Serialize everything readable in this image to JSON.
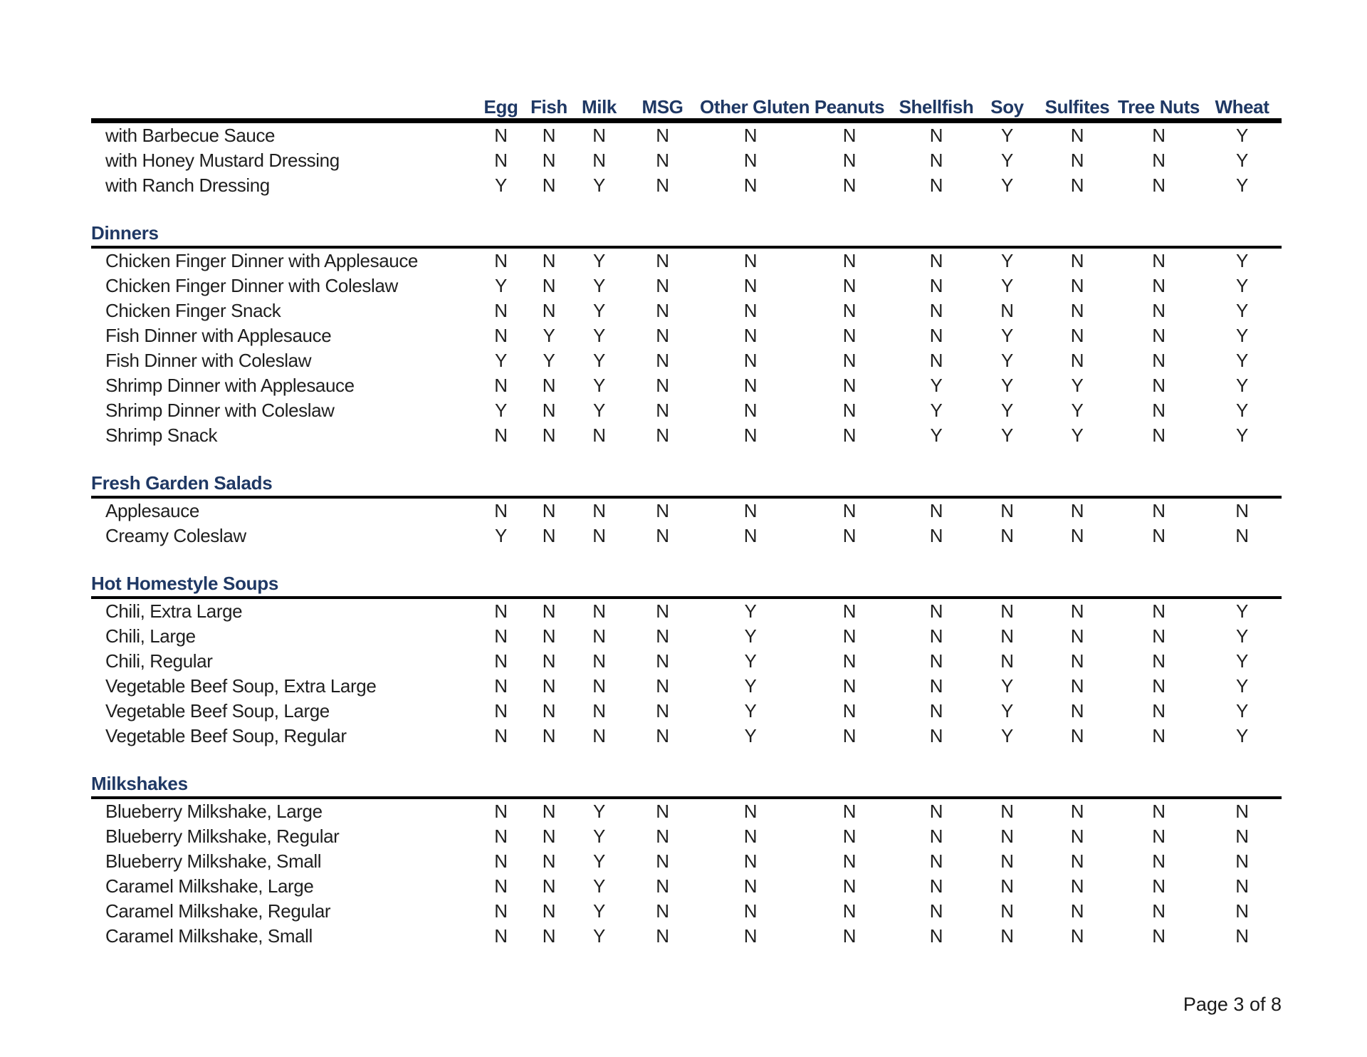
{
  "page": {
    "footer": "Page 3 of 8"
  },
  "colors": {
    "heading": "#1F3864",
    "body_text": "#1f1f1f",
    "rule": "#000000",
    "background": "#ffffff"
  },
  "table": {
    "columns": [
      "Egg",
      "Fish",
      "Milk",
      "MSG",
      "Other Gluten",
      "Peanuts",
      "Shellfish",
      "Soy",
      "Sulfites",
      "Tree Nuts",
      "Wheat"
    ],
    "sections": [
      {
        "title": "",
        "rows": [
          {
            "label": "with Barbecue Sauce",
            "values": [
              "N",
              "N",
              "N",
              "N",
              "N",
              "N",
              "N",
              "Y",
              "N",
              "N",
              "Y"
            ]
          },
          {
            "label": "with Honey Mustard Dressing",
            "values": [
              "N",
              "N",
              "N",
              "N",
              "N",
              "N",
              "N",
              "Y",
              "N",
              "N",
              "Y"
            ]
          },
          {
            "label": "with Ranch Dressing",
            "values": [
              "Y",
              "N",
              "Y",
              "N",
              "N",
              "N",
              "N",
              "Y",
              "N",
              "N",
              "Y"
            ]
          }
        ]
      },
      {
        "title": "Dinners",
        "rows": [
          {
            "label": "Chicken Finger Dinner with Applesauce",
            "values": [
              "N",
              "N",
              "Y",
              "N",
              "N",
              "N",
              "N",
              "Y",
              "N",
              "N",
              "Y"
            ]
          },
          {
            "label": "Chicken Finger Dinner with Coleslaw",
            "values": [
              "Y",
              "N",
              "Y",
              "N",
              "N",
              "N",
              "N",
              "Y",
              "N",
              "N",
              "Y"
            ]
          },
          {
            "label": "Chicken Finger Snack",
            "values": [
              "N",
              "N",
              "Y",
              "N",
              "N",
              "N",
              "N",
              "N",
              "N",
              "N",
              "Y"
            ]
          },
          {
            "label": "Fish Dinner with Applesauce",
            "values": [
              "N",
              "Y",
              "Y",
              "N",
              "N",
              "N",
              "N",
              "Y",
              "N",
              "N",
              "Y"
            ]
          },
          {
            "label": "Fish Dinner with Coleslaw",
            "values": [
              "Y",
              "Y",
              "Y",
              "N",
              "N",
              "N",
              "N",
              "Y",
              "N",
              "N",
              "Y"
            ]
          },
          {
            "label": "Shrimp Dinner with Applesauce",
            "values": [
              "N",
              "N",
              "Y",
              "N",
              "N",
              "N",
              "Y",
              "Y",
              "Y",
              "N",
              "Y"
            ]
          },
          {
            "label": "Shrimp Dinner with Coleslaw",
            "values": [
              "Y",
              "N",
              "Y",
              "N",
              "N",
              "N",
              "Y",
              "Y",
              "Y",
              "N",
              "Y"
            ]
          },
          {
            "label": "Shrimp Snack",
            "values": [
              "N",
              "N",
              "N",
              "N",
              "N",
              "N",
              "Y",
              "Y",
              "Y",
              "N",
              "Y"
            ]
          }
        ]
      },
      {
        "title": "Fresh Garden Salads",
        "rows": [
          {
            "label": "Applesauce",
            "values": [
              "N",
              "N",
              "N",
              "N",
              "N",
              "N",
              "N",
              "N",
              "N",
              "N",
              "N"
            ]
          },
          {
            "label": "Creamy Coleslaw",
            "values": [
              "Y",
              "N",
              "N",
              "N",
              "N",
              "N",
              "N",
              "N",
              "N",
              "N",
              "N"
            ]
          }
        ]
      },
      {
        "title": "Hot Homestyle Soups",
        "rows": [
          {
            "label": "Chili, Extra Large",
            "values": [
              "N",
              "N",
              "N",
              "N",
              "Y",
              "N",
              "N",
              "N",
              "N",
              "N",
              "Y"
            ]
          },
          {
            "label": "Chili, Large",
            "values": [
              "N",
              "N",
              "N",
              "N",
              "Y",
              "N",
              "N",
              "N",
              "N",
              "N",
              "Y"
            ]
          },
          {
            "label": "Chili, Regular",
            "values": [
              "N",
              "N",
              "N",
              "N",
              "Y",
              "N",
              "N",
              "N",
              "N",
              "N",
              "Y"
            ]
          },
          {
            "label": "Vegetable Beef Soup, Extra Large",
            "values": [
              "N",
              "N",
              "N",
              "N",
              "Y",
              "N",
              "N",
              "Y",
              "N",
              "N",
              "Y"
            ]
          },
          {
            "label": "Vegetable Beef Soup, Large",
            "values": [
              "N",
              "N",
              "N",
              "N",
              "Y",
              "N",
              "N",
              "Y",
              "N",
              "N",
              "Y"
            ]
          },
          {
            "label": "Vegetable Beef Soup, Regular",
            "values": [
              "N",
              "N",
              "N",
              "N",
              "Y",
              "N",
              "N",
              "Y",
              "N",
              "N",
              "Y"
            ]
          }
        ]
      },
      {
        "title": "Milkshakes",
        "rows": [
          {
            "label": "Blueberry Milkshake, Large",
            "values": [
              "N",
              "N",
              "Y",
              "N",
              "N",
              "N",
              "N",
              "N",
              "N",
              "N",
              "N"
            ]
          },
          {
            "label": "Blueberry Milkshake, Regular",
            "values": [
              "N",
              "N",
              "Y",
              "N",
              "N",
              "N",
              "N",
              "N",
              "N",
              "N",
              "N"
            ]
          },
          {
            "label": "Blueberry Milkshake, Small",
            "values": [
              "N",
              "N",
              "Y",
              "N",
              "N",
              "N",
              "N",
              "N",
              "N",
              "N",
              "N"
            ]
          },
          {
            "label": "Caramel Milkshake, Large",
            "values": [
              "N",
              "N",
              "Y",
              "N",
              "N",
              "N",
              "N",
              "N",
              "N",
              "N",
              "N"
            ]
          },
          {
            "label": "Caramel Milkshake, Regular",
            "values": [
              "N",
              "N",
              "Y",
              "N",
              "N",
              "N",
              "N",
              "N",
              "N",
              "N",
              "N"
            ]
          },
          {
            "label": "Caramel Milkshake, Small",
            "values": [
              "N",
              "N",
              "Y",
              "N",
              "N",
              "N",
              "N",
              "N",
              "N",
              "N",
              "N"
            ]
          }
        ]
      }
    ]
  }
}
